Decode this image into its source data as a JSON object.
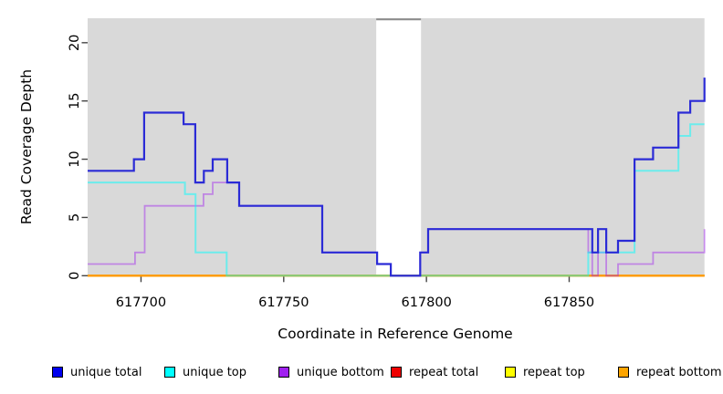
{
  "chart_data": {
    "type": "line",
    "subtype": "step-coverage",
    "title": "",
    "xlabel": "Coordinate in Reference Genome",
    "ylabel": "Read Coverage Depth",
    "xlim": [
      617681.3,
      617897.4
    ],
    "ylim": [
      0,
      22.1
    ],
    "x_ticks": [
      617700,
      617750,
      617800,
      617850
    ],
    "y_ticks": [
      0,
      5,
      10,
      15,
      20
    ],
    "grid": false,
    "panel_bg": "#D9D9D9",
    "tick_color": "#444444",
    "gap_band": {
      "x_start": 617782.4,
      "x_end": 617798.1,
      "fill": "#FFFFFF",
      "top_marker_color": "#8C8C8C"
    },
    "series": [
      {
        "name": "repeat total",
        "color": "#EE0000",
        "opacity": 1,
        "width": 2,
        "steps": [
          [
            617681.3,
            0
          ],
          [
            617897.4,
            0
          ]
        ]
      },
      {
        "name": "repeat top",
        "color": "#FFFF00",
        "opacity": 1,
        "width": 2,
        "steps": [
          [
            617681.3,
            0
          ],
          [
            617897.4,
            0
          ]
        ]
      },
      {
        "name": "repeat bottom",
        "color": "#FF9800",
        "opacity": 1,
        "width": 2.2,
        "steps": [
          [
            617681.3,
            0
          ],
          [
            617897.4,
            0
          ]
        ]
      },
      {
        "name": "unique bottom",
        "color": "#A020F0",
        "opacity": 0.45,
        "width": 1.8,
        "steps": [
          [
            617681.3,
            1
          ],
          [
            617697.9,
            2
          ],
          [
            617701.3,
            6
          ],
          [
            617721.9,
            7
          ],
          [
            617725.1,
            8
          ],
          [
            617734.4,
            6
          ],
          [
            617763.5,
            2
          ],
          [
            617782.7,
            1
          ],
          [
            617787.5,
            0
          ],
          [
            617797.8,
            2
          ],
          [
            617800.6,
            4
          ],
          [
            617856.7,
            2
          ],
          [
            617858.1,
            0
          ],
          [
            617860.1,
            2
          ],
          [
            617863.0,
            0
          ],
          [
            617867.1,
            1
          ],
          [
            617879.4,
            2
          ],
          [
            617897.4,
            4
          ]
        ]
      },
      {
        "name": "unique top",
        "color": "#00FFFF",
        "opacity": 0.5,
        "width": 2,
        "steps": [
          [
            617681.3,
            8
          ],
          [
            617715.4,
            7
          ],
          [
            617719.1,
            2
          ],
          [
            617730.0,
            0
          ],
          [
            617856.7,
            2
          ],
          [
            617872.9,
            9
          ],
          [
            617888.3,
            12
          ],
          [
            617892.4,
            13
          ],
          [
            617897.4,
            13
          ]
        ]
      },
      {
        "name": "unique total",
        "color": "#2B2BD6",
        "opacity": 1,
        "width": 2.2,
        "steps": [
          [
            617681.3,
            9
          ],
          [
            617697.5,
            10
          ],
          [
            617701.1,
            14
          ],
          [
            617714.9,
            13
          ],
          [
            617719.0,
            8
          ],
          [
            617722.0,
            9
          ],
          [
            617725.1,
            10
          ],
          [
            617730.2,
            8
          ],
          [
            617734.4,
            6
          ],
          [
            617763.5,
            2
          ],
          [
            617782.7,
            1
          ],
          [
            617787.5,
            0
          ],
          [
            617797.8,
            2
          ],
          [
            617800.6,
            4
          ],
          [
            617858.1,
            2
          ],
          [
            617860.1,
            4
          ],
          [
            617863.0,
            2
          ],
          [
            617867.1,
            3
          ],
          [
            617872.9,
            10
          ],
          [
            617879.4,
            11
          ],
          [
            617888.3,
            14
          ],
          [
            617892.4,
            15
          ],
          [
            617897.4,
            17
          ]
        ]
      }
    ]
  },
  "legend": {
    "items": [
      {
        "label": "unique total",
        "color": "#0000EE"
      },
      {
        "label": "unique top",
        "color": "#00FFFF"
      },
      {
        "label": "unique bottom",
        "color": "#A020F0"
      },
      {
        "label": "repeat total",
        "color": "#EE0000"
      },
      {
        "label": "repeat top",
        "color": "#FFFF00"
      },
      {
        "label": "repeat bottom",
        "color": "#FFA500"
      }
    ],
    "item_lefts": [
      57,
      180,
      305,
      428,
      553,
      677
    ]
  }
}
